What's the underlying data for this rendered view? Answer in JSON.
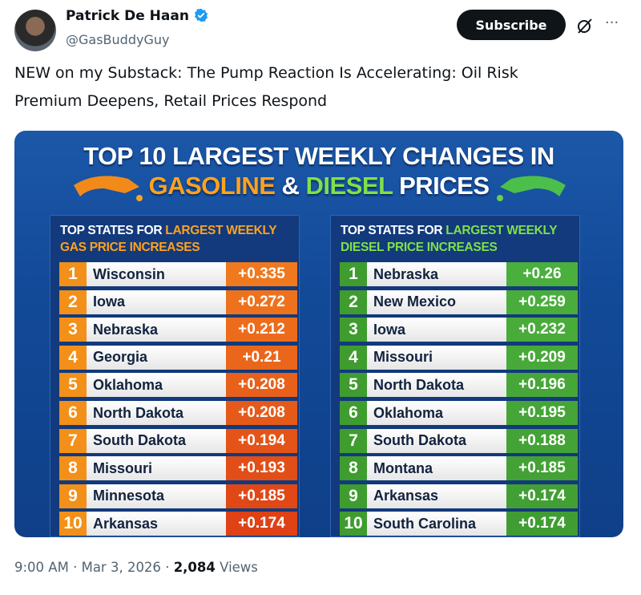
{
  "post": {
    "author": "Patrick De Haan",
    "handle": "@GasBuddyGuy",
    "subscribe": "Subscribe",
    "more": "···",
    "text_lines": [
      "NEW on my Substack: The Pump Reaction Is Accelerating: Oil Risk",
      "Premium Deepens, Retail Prices Respond"
    ]
  },
  "image": {
    "title_line1": "TOP 10 LARGEST WEEKLY CHANGES IN",
    "title_gas": "GASOLINE",
    "title_amp": "&",
    "title_diesel": "DIESEL",
    "title_prices": "PRICES",
    "tables": [
      {
        "header_prefix": "TOP STATES FOR",
        "header_highlight": "LARGEST WEEKLY",
        "header_line2": "GAS PRICE INCREASES",
        "rows": [
          [
            "1",
            "Wisconsin",
            "+0.335"
          ],
          [
            "2",
            "Iowa",
            "+0.272"
          ],
          [
            "3",
            "Nebraska",
            "+0.212"
          ],
          [
            "4",
            "Georgia",
            "+0.21"
          ],
          [
            "5",
            "Oklahoma",
            "+0.208"
          ],
          [
            "6",
            "North Dakota",
            "+0.208"
          ],
          [
            "7",
            "South Dakota",
            "+0.194"
          ],
          [
            "8",
            "Missouri",
            "+0.193"
          ],
          [
            "9",
            "Minnesota",
            "+0.185"
          ],
          [
            "10",
            "Arkansas",
            "+0.174"
          ]
        ]
      },
      {
        "header_prefix": "TOP STATES FOR",
        "header_highlight": "LARGEST WEEKLY",
        "header_line2": "DIESEL PRICE INCREASES",
        "rows": [
          [
            "1",
            "Nebraska",
            "+0.26"
          ],
          [
            "2",
            "New Mexico",
            "+0.259"
          ],
          [
            "3",
            "Iowa",
            "+0.232"
          ],
          [
            "4",
            "Missouri",
            "+0.209"
          ],
          [
            "5",
            "North Dakota",
            "+0.196"
          ],
          [
            "6",
            "Oklahoma",
            "+0.195"
          ],
          [
            "7",
            "South Dakota",
            "+0.188"
          ],
          [
            "8",
            "Montana",
            "+0.185"
          ],
          [
            "9",
            "Arkansas",
            "+0.174"
          ],
          [
            "10",
            "South Carolina",
            "+0.174"
          ]
        ]
      }
    ]
  },
  "footer": {
    "time": "9:00 AM",
    "separator": "·",
    "date": "Mar 3, 2026",
    "views_count": "2,084",
    "views_label": "Views"
  }
}
